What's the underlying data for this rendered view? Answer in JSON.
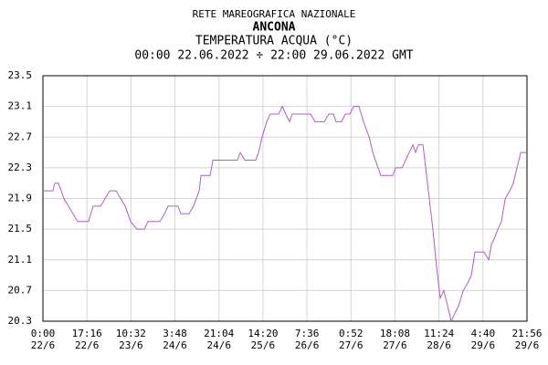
{
  "chart_data": {
    "type": "line",
    "title": "RETE MAREOGRAFICA NAZIONALE",
    "subtitle": "ANCONA",
    "y_label": "TEMPERATURA ACQUA (°C)",
    "period": "00:00 22.06.2022 ÷ 22:00 29.06.2022 GMT",
    "xlim": [
      0,
      189.93
    ],
    "xticks": [
      {
        "value": 0,
        "label": "0:00"
      },
      {
        "value": 17.27,
        "label": "17:16"
      },
      {
        "value": 34.53,
        "label": "10:32"
      },
      {
        "value": 51.8,
        "label": "3:48"
      },
      {
        "value": 69.07,
        "label": "21:04"
      },
      {
        "value": 86.33,
        "label": "14:20"
      },
      {
        "value": 103.6,
        "label": "7:36"
      },
      {
        "value": 120.87,
        "label": "0:52"
      },
      {
        "value": 138.13,
        "label": "18:08"
      },
      {
        "value": 155.4,
        "label": "11:24"
      },
      {
        "value": 172.67,
        "label": "4:40"
      },
      {
        "value": 189.93,
        "label": "21:56"
      }
    ],
    "xtick_dates": [
      "22/6",
      "22/6",
      "23/6",
      "24/6",
      "24/6",
      "25/6",
      "26/6",
      "27/6",
      "27/6",
      "28/6",
      "29/6",
      "29/6"
    ],
    "ylim": [
      20.3,
      23.5
    ],
    "yticks": [
      20.3,
      20.7,
      21.1,
      21.5,
      21.9,
      22.3,
      22.7,
      23.1,
      23.5
    ],
    "grid": true,
    "series": [
      {
        "color": "#b05cc8",
        "x": [
          0,
          3.9,
          4.7,
          6.1,
          7.2,
          8.2,
          10,
          11.8,
          13.6,
          17.9,
          19.7,
          22.6,
          24.4,
          26.2,
          28.7,
          30.5,
          32.3,
          34.4,
          36.9,
          39.8,
          41.2,
          45.9,
          47.7,
          49.1,
          53,
          54.1,
          57.3,
          59.1,
          61.3,
          62,
          65.6,
          66.7,
          76.3,
          77.4,
          79.2,
          83.5,
          84.6,
          86,
          87.8,
          89.2,
          92.5,
          93.9,
          95.3,
          96.8,
          97.8,
          105,
          106.8,
          110.4,
          112.2,
          114,
          115,
          117.2,
          118.6,
          120.4,
          121.9,
          124,
          125.8,
          128,
          129.4,
          131.5,
          132.6,
          137.3,
          138.4,
          140.9,
          142.3,
          143.7,
          145.2,
          146.2,
          147.3,
          149.1,
          150.2,
          151.6,
          153,
          154.5,
          155.9,
          157.3,
          158.8,
          160.2,
          161.6,
          163.1,
          164.9,
          166.7,
          168.1,
          169.5,
          173.1,
          174.9,
          176,
          177.4,
          178.5,
          179.9,
          181.4,
          183.2,
          184.6,
          186,
          187.5,
          189.6
        ],
        "values": [
          22.0,
          22.0,
          22.1,
          22.1,
          22.0,
          21.9,
          21.8,
          21.7,
          21.6,
          21.6,
          21.8,
          21.8,
          21.9,
          22.0,
          22.0,
          21.9,
          21.8,
          21.6,
          21.5,
          21.5,
          21.6,
          21.6,
          21.7,
          21.8,
          21.8,
          21.7,
          21.7,
          21.8,
          22.0,
          22.2,
          22.2,
          22.4,
          22.4,
          22.5,
          22.4,
          22.4,
          22.5,
          22.7,
          22.9,
          23.0,
          23.0,
          23.1,
          23.0,
          22.9,
          23.0,
          23.0,
          22.9,
          22.9,
          23.0,
          23.0,
          22.9,
          22.9,
          23.0,
          23.0,
          23.1,
          23.1,
          22.9,
          22.7,
          22.5,
          22.3,
          22.2,
          22.2,
          22.3,
          22.3,
          22.4,
          22.5,
          22.6,
          22.5,
          22.6,
          22.6,
          22.3,
          21.9,
          21.5,
          21.0,
          20.6,
          20.7,
          20.5,
          20.3,
          20.4,
          20.5,
          20.7,
          20.8,
          20.9,
          21.2,
          21.2,
          21.1,
          21.3,
          21.4,
          21.5,
          21.6,
          21.9,
          22.0,
          22.1,
          22.3,
          22.5,
          22.5
        ]
      }
    ]
  }
}
